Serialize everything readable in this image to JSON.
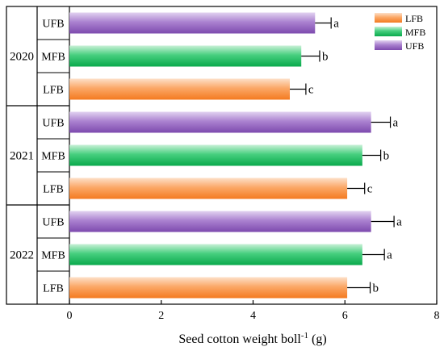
{
  "chart_data": {
    "type": "bar",
    "orientation": "horizontal",
    "xlabel": "Seed cotton weight boll",
    "xlabel_superscript": "-1",
    "xlabel_unit": "(g)",
    "xlim": [
      0,
      8
    ],
    "xticks": [
      "0",
      "2",
      "4",
      "6",
      "8"
    ],
    "grid": false,
    "legend_position": "top-right",
    "legend": [
      "LFB",
      "MFB",
      "UFB"
    ],
    "colors": {
      "LFB": "#f98b3c",
      "MFB": "#1fbf63",
      "UFB": "#9b6bc4"
    },
    "groups": [
      {
        "label": "2020",
        "bars": [
          {
            "category": "UFB",
            "value": 5.35,
            "error": 0.35,
            "letter": "a"
          },
          {
            "category": "MFB",
            "value": 5.05,
            "error": 0.4,
            "letter": "b"
          },
          {
            "category": "LFB",
            "value": 4.8,
            "error": 0.35,
            "letter": "c"
          }
        ]
      },
      {
        "label": "2021",
        "bars": [
          {
            "category": "UFB",
            "value": 6.57,
            "error": 0.42,
            "letter": "a"
          },
          {
            "category": "MFB",
            "value": 6.38,
            "error": 0.4,
            "letter": "b"
          },
          {
            "category": "LFB",
            "value": 6.05,
            "error": 0.38,
            "letter": "c"
          }
        ]
      },
      {
        "label": "2022",
        "bars": [
          {
            "category": "UFB",
            "value": 6.57,
            "error": 0.5,
            "letter": "a"
          },
          {
            "category": "MFB",
            "value": 6.38,
            "error": 0.48,
            "letter": "a"
          },
          {
            "category": "LFB",
            "value": 6.05,
            "error": 0.5,
            "letter": "b"
          }
        ]
      }
    ]
  }
}
